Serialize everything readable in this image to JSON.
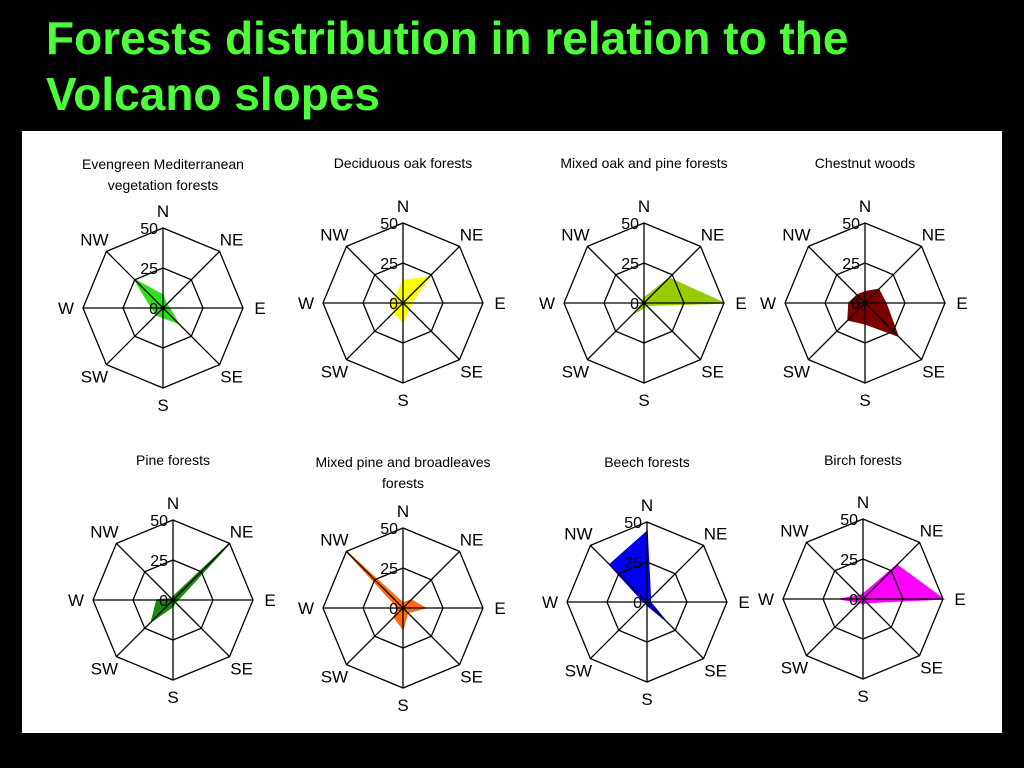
{
  "slide": {
    "title_line1": "Forests distribution in relation to the",
    "title_line2": "Volcano slopes"
  },
  "chart_data": [
    {
      "type": "radar",
      "title": [
        "Evengreen Mediterranean",
        "vegetation forests"
      ],
      "axes": [
        "N",
        "NE",
        "E",
        "SE",
        "S",
        "SW",
        "W",
        "NW"
      ],
      "rlim": [
        0,
        50
      ],
      "ticks": [
        0,
        25,
        50
      ],
      "color": "#33dd22",
      "values": [
        8,
        3,
        4,
        13,
        6,
        6,
        7,
        25
      ]
    },
    {
      "type": "radar",
      "title": [
        "Deciduous oak forests"
      ],
      "axes": [
        "N",
        "NE",
        "E",
        "SE",
        "S",
        "SW",
        "W",
        "NW"
      ],
      "rlim": [
        0,
        50
      ],
      "ticks": [
        0,
        25,
        50
      ],
      "color": "#ffff00",
      "values": [
        14,
        23,
        5,
        5,
        12,
        8,
        8,
        6
      ]
    },
    {
      "type": "radar",
      "title": [
        "Mixed oak and pine forests"
      ],
      "axes": [
        "N",
        "NE",
        "E",
        "SE",
        "S",
        "SW",
        "W",
        "NW"
      ],
      "rlim": [
        0,
        50
      ],
      "ticks": [
        0,
        25,
        50
      ],
      "color": "#99cc00",
      "values": [
        3,
        22,
        50,
        2,
        3,
        9,
        1,
        2
      ]
    },
    {
      "type": "radar",
      "title": [
        "Chestnut woods"
      ],
      "axes": [
        "N",
        "NE",
        "E",
        "SE",
        "S",
        "SW",
        "W",
        "NW"
      ],
      "rlim": [
        0,
        50
      ],
      "ticks": [
        0,
        25,
        50
      ],
      "color": "#7a0000",
      "values": [
        7,
        12,
        13,
        29,
        13,
        15,
        10,
        7
      ]
    },
    {
      "type": "radar",
      "title": [
        "Pine forests"
      ],
      "axes": [
        "N",
        "NE",
        "E",
        "SE",
        "S",
        "SW",
        "W",
        "NW"
      ],
      "rlim": [
        0,
        50
      ],
      "ticks": [
        0,
        25,
        50
      ],
      "color": "#1a8a10",
      "values": [
        2,
        50,
        3,
        2,
        4,
        19,
        10,
        1
      ]
    },
    {
      "type": "radar",
      "title": [
        "Mixed pine and broadleaves",
        "forests"
      ],
      "axes": [
        "N",
        "NE",
        "E",
        "SE",
        "S",
        "SW",
        "W",
        "NW"
      ],
      "rlim": [
        0,
        50
      ],
      "ticks": [
        0,
        25,
        50
      ],
      "color": "#ff6a13",
      "values": [
        3,
        7,
        14,
        4,
        13,
        8,
        3,
        50
      ]
    },
    {
      "type": "radar",
      "title": [
        "Beech forests"
      ],
      "axes": [
        "N",
        "NE",
        "E",
        "SE",
        "S",
        "SW",
        "W",
        "NW"
      ],
      "rlim": [
        0,
        50
      ],
      "ticks": [
        0,
        25,
        50
      ],
      "color": "#0000ee",
      "values": [
        44,
        3,
        2,
        16,
        2,
        1,
        2,
        33
      ]
    },
    {
      "type": "radar",
      "title": [
        "Birch forests"
      ],
      "axes": [
        "N",
        "NE",
        "E",
        "SE",
        "S",
        "SW",
        "W",
        "NW"
      ],
      "rlim": [
        0,
        50
      ],
      "ticks": [
        0,
        25,
        50
      ],
      "color": "#ff00ff",
      "values": [
        3,
        30,
        50,
        3,
        3,
        3,
        14,
        3
      ]
    }
  ]
}
